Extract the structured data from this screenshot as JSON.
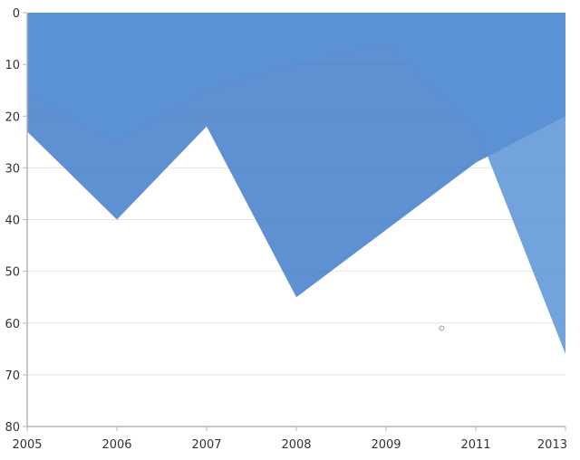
{
  "chart_data": {
    "type": "area",
    "x": [
      "2005",
      "2006",
      "2007",
      "2008",
      "2009",
      "2011",
      "2013"
    ],
    "y_ticks": [
      0,
      10,
      20,
      30,
      40,
      50,
      60,
      70,
      80
    ],
    "ylim": [
      0,
      80
    ],
    "y_inverted": true,
    "grid": true,
    "series": [
      {
        "values": [
          23,
          40,
          22,
          55,
          42,
          29,
          20
        ],
        "color": "#3a78c8"
      },
      {
        "values": [
          16,
          25,
          15,
          10,
          6,
          22,
          66
        ],
        "color": "#5b93d6"
      }
    ],
    "stray_marker": {
      "x_position_between": [
        "2009",
        "2011"
      ],
      "x_fraction": 0.62,
      "y": 61
    },
    "title": "",
    "xlabel": "",
    "ylabel": ""
  }
}
